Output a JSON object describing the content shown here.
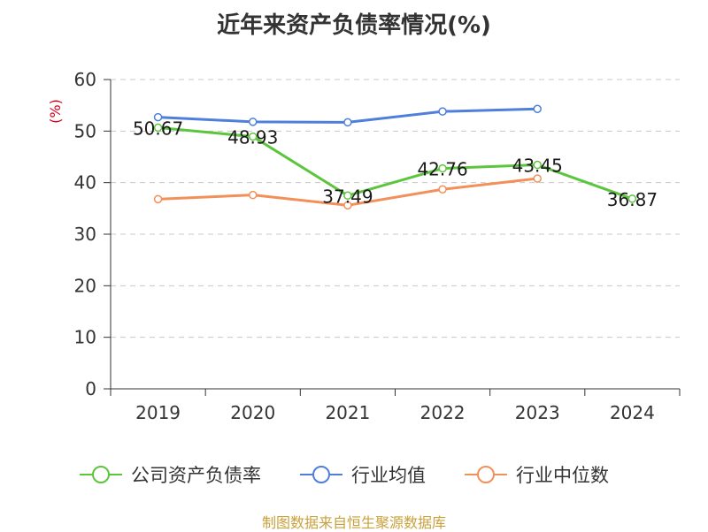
{
  "chart_data": {
    "type": "line",
    "title": "近年来资产负债率情况(%)",
    "ylabel": "(%)",
    "categories": [
      "2019",
      "2020",
      "2021",
      "2022",
      "2023",
      "2024"
    ],
    "ylim": [
      0,
      60
    ],
    "yticks": [
      0,
      10,
      20,
      30,
      40,
      50,
      60
    ],
    "grid": true,
    "legend_position": "bottom",
    "series": [
      {
        "name": "公司资产负债率",
        "color": "#5cc53e",
        "values": [
          50.67,
          48.93,
          37.49,
          42.76,
          43.45,
          36.87
        ],
        "labels": [
          "50.67",
          "48.93",
          "37.49",
          "42.76",
          "43.45",
          "36.87"
        ]
      },
      {
        "name": "行业均值",
        "color": "#4f7fdc",
        "values": [
          52.7,
          51.8,
          51.7,
          53.8,
          54.3,
          null
        ]
      },
      {
        "name": "行业中位数",
        "color": "#f3905a",
        "values": [
          36.8,
          37.6,
          35.6,
          38.7,
          40.8,
          null
        ]
      }
    ],
    "source": "制图数据来自恒生聚源数据库"
  }
}
